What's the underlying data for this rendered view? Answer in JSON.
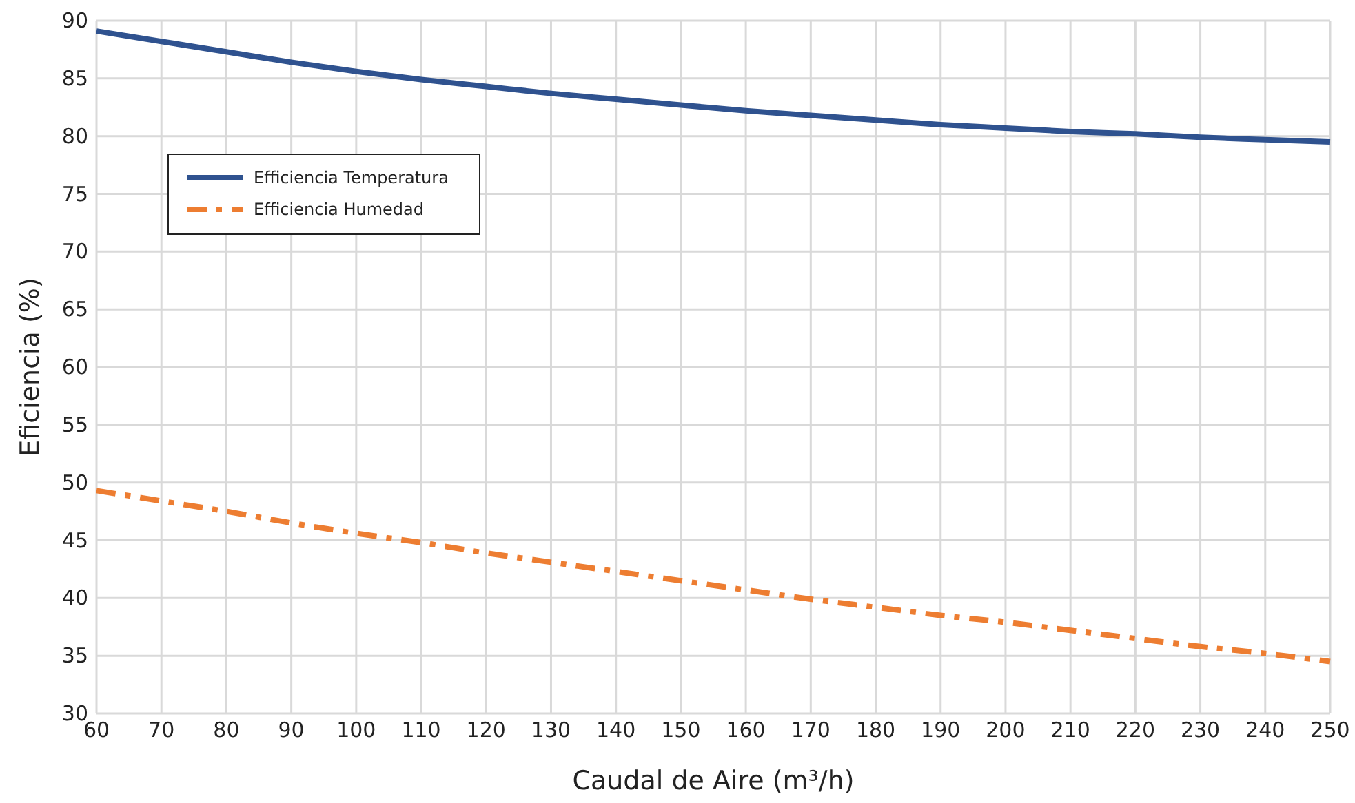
{
  "chart_data": {
    "type": "line",
    "xlabel": "Caudal de Aire (m³/h)",
    "ylabel": "Eficiencia (%)",
    "x": [
      60,
      70,
      80,
      90,
      100,
      110,
      120,
      130,
      140,
      150,
      160,
      170,
      180,
      190,
      200,
      210,
      220,
      230,
      240,
      250
    ],
    "series": [
      {
        "name": "Efficiencia Temperatura",
        "color": "#2f528f",
        "line_style": "solid",
        "values": [
          89.1,
          88.2,
          87.3,
          86.4,
          85.6,
          84.9,
          84.3,
          83.7,
          83.2,
          82.7,
          82.2,
          81.8,
          81.4,
          81.0,
          80.7,
          80.4,
          80.2,
          79.9,
          79.7,
          79.5
        ]
      },
      {
        "name": "Efficiencia Humedad",
        "color": "#ed7d31",
        "line_style": "dashdot",
        "values": [
          49.3,
          48.4,
          47.5,
          46.5,
          45.6,
          44.8,
          43.9,
          43.1,
          42.3,
          41.5,
          40.7,
          39.9,
          39.2,
          38.5,
          37.9,
          37.2,
          36.5,
          35.8,
          35.2,
          34.5
        ]
      }
    ],
    "xlim": [
      60,
      250
    ],
    "xticks": [
      60,
      70,
      80,
      90,
      100,
      110,
      120,
      130,
      140,
      150,
      160,
      170,
      180,
      190,
      200,
      210,
      220,
      230,
      240,
      250
    ],
    "ylim": [
      30,
      90
    ],
    "yticks": [
      30,
      35,
      40,
      45,
      50,
      55,
      60,
      65,
      70,
      75,
      80,
      85,
      90
    ],
    "grid": true,
    "legend": "top left",
    "marker": "none"
  }
}
